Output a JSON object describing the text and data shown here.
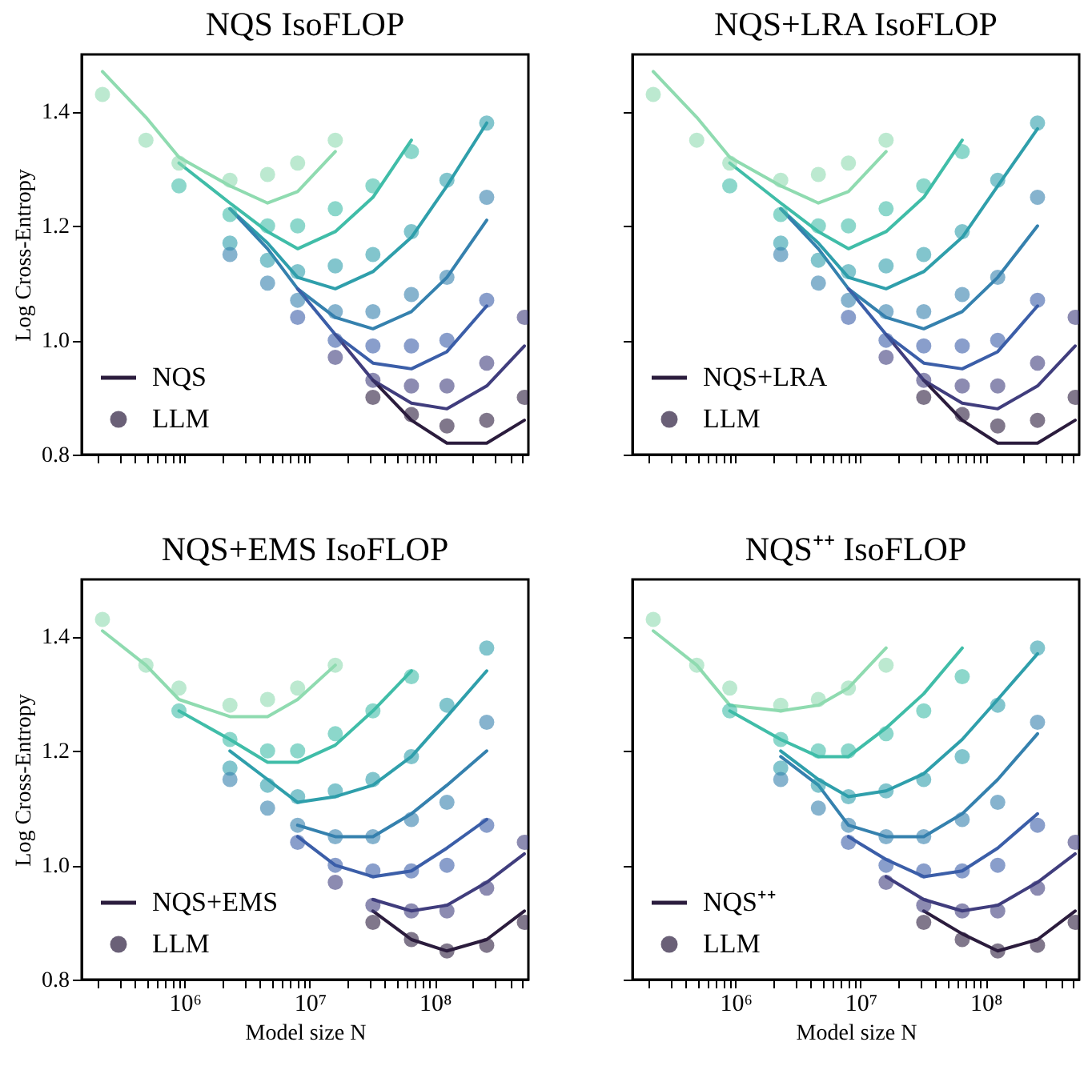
{
  "chart_data": [
    {
      "type": "line",
      "title": "NQS IsoFLOP",
      "ylabel": "Log Cross-Entropy",
      "xlim": [
        150000,
        560000000
      ],
      "ylim": [
        0.8,
        1.5
      ],
      "log": "x",
      "grid": false,
      "legend": "bottom left",
      "tick_labels": "y",
      "xticks": [
        {
          "value": 200000,
          "label": null
        },
        {
          "value": 300000,
          "label": null
        },
        {
          "value": 400000,
          "label": null
        },
        {
          "value": 500000,
          "label": null
        },
        {
          "value": 600000,
          "label": null
        },
        {
          "value": 700000,
          "label": null
        },
        {
          "value": 800000,
          "label": null
        },
        {
          "value": 900000,
          "label": null
        },
        {
          "value": 1000000,
          "label": null
        },
        {
          "value": 2000000,
          "label": null
        },
        {
          "value": 3000000,
          "label": null
        },
        {
          "value": 4000000,
          "label": null
        },
        {
          "value": 5000000,
          "label": null
        },
        {
          "value": 6000000,
          "label": null
        },
        {
          "value": 7000000,
          "label": null
        },
        {
          "value": 8000000,
          "label": null
        },
        {
          "value": 9000000,
          "label": null
        },
        {
          "value": 10000000,
          "label": null
        },
        {
          "value": 20000000,
          "label": null
        },
        {
          "value": 30000000,
          "label": null
        },
        {
          "value": 40000000,
          "label": null
        },
        {
          "value": 50000000,
          "label": null
        },
        {
          "value": 60000000,
          "label": null
        },
        {
          "value": 70000000,
          "label": null
        },
        {
          "value": 80000000,
          "label": null
        },
        {
          "value": 90000000,
          "label": null
        },
        {
          "value": 100000000,
          "label": null
        },
        {
          "value": 200000000,
          "label": null
        },
        {
          "value": 300000000,
          "label": null
        },
        {
          "value": 400000000,
          "label": null
        },
        {
          "value": 500000000,
          "label": null
        }
      ],
      "yticks": [
        0.8,
        {
          "value": 1.0,
          "label": "1.0"
        },
        1.2,
        1.4
      ],
      "series": [
        {
          "type": "line",
          "color": "#8fdbb0",
          "x": [
            220000,
            490000,
            900000,
            2300000,
            4600000,
            8000000,
            16000000
          ],
          "values": [
            1.47,
            1.39,
            1.32,
            1.27,
            1.24,
            1.26,
            1.33
          ]
        },
        {
          "type": "line",
          "color": "#40bda8",
          "x": [
            900000,
            2300000,
            4600000,
            8000000,
            16000000,
            32000000,
            65000000
          ],
          "values": [
            1.31,
            1.24,
            1.19,
            1.16,
            1.19,
            1.25,
            1.35
          ]
        },
        {
          "type": "line",
          "color": "#2f9fab",
          "x": [
            2300000,
            4600000,
            8000000,
            16000000,
            32000000,
            65000000,
            125000000,
            260000000
          ],
          "values": [
            1.23,
            1.17,
            1.11,
            1.09,
            1.12,
            1.18,
            1.27,
            1.38
          ]
        },
        {
          "type": "line",
          "color": "#3581ae",
          "x": [
            2300000,
            4600000,
            8000000,
            16000000,
            32000000,
            65000000,
            125000000,
            260000000
          ],
          "values": [
            1.23,
            1.16,
            1.09,
            1.04,
            1.02,
            1.05,
            1.11,
            1.21
          ]
        },
        {
          "type": "line",
          "color": "#3b5ea8",
          "x": [
            8000000,
            16000000,
            32000000,
            65000000,
            125000000,
            260000000
          ],
          "values": [
            1.09,
            1.01,
            0.96,
            0.95,
            0.98,
            1.06
          ]
        },
        {
          "type": "line",
          "color": "#403d7d",
          "x": [
            16000000,
            32000000,
            65000000,
            125000000,
            260000000,
            520000000
          ],
          "values": [
            1.01,
            0.93,
            0.89,
            0.88,
            0.92,
            0.99
          ]
        },
        {
          "type": "line",
          "color": "#2b1c3d",
          "name": "NQS",
          "x": [
            32000000,
            65000000,
            125000000,
            260000000,
            520000000
          ],
          "values": [
            0.93,
            0.86,
            0.82,
            0.82,
            0.86
          ]
        },
        {
          "type": "scatter",
          "color": "#8fdbb0",
          "x": [
            220000,
            490000,
            900000,
            2300000,
            4600000,
            8000000,
            16000000
          ],
          "values": [
            1.43,
            1.35,
            1.31,
            1.28,
            1.29,
            1.31,
            1.35
          ]
        },
        {
          "type": "scatter",
          "color": "#40bda8",
          "x": [
            900000,
            2300000,
            4600000,
            8000000,
            16000000,
            32000000,
            65000000
          ],
          "values": [
            1.27,
            1.22,
            1.2,
            1.2,
            1.23,
            1.27,
            1.33
          ]
        },
        {
          "type": "scatter",
          "color": "#2f9fab",
          "x": [
            2300000,
            4600000,
            8000000,
            16000000,
            32000000,
            65000000,
            125000000,
            260000000
          ],
          "values": [
            1.17,
            1.14,
            1.12,
            1.13,
            1.15,
            1.19,
            1.28,
            1.38
          ]
        },
        {
          "type": "scatter",
          "color": "#3581ae",
          "x": [
            2300000,
            4600000,
            8000000,
            16000000,
            32000000,
            65000000,
            125000000,
            260000000
          ],
          "values": [
            1.15,
            1.1,
            1.07,
            1.05,
            1.05,
            1.08,
            1.11,
            1.25
          ]
        },
        {
          "type": "scatter",
          "color": "#3b5ea8",
          "x": [
            8000000,
            16000000,
            32000000,
            65000000,
            125000000,
            260000000
          ],
          "values": [
            1.04,
            1.0,
            0.99,
            0.99,
            1.0,
            1.07
          ]
        },
        {
          "type": "scatter",
          "color": "#403d7d",
          "x": [
            16000000,
            32000000,
            65000000,
            125000000,
            260000000,
            520000000
          ],
          "values": [
            0.97,
            0.93,
            0.92,
            0.92,
            0.96,
            1.04
          ]
        },
        {
          "type": "scatter",
          "color": "#2b1c3d",
          "name": "LLM",
          "x": [
            32000000,
            65000000,
            125000000,
            260000000,
            520000000
          ],
          "values": [
            0.9,
            0.87,
            0.85,
            0.86,
            0.9
          ]
        }
      ]
    },
    {
      "type": "line",
      "title": "NQS+LRA IsoFLOP",
      "xlim": [
        150000,
        560000000
      ],
      "ylim": [
        0.8,
        1.5
      ],
      "log": "x",
      "grid": false,
      "legend": "bottom left",
      "tick_labels": false,
      "xticks": [
        {
          "value": 200000,
          "label": null
        },
        {
          "value": 300000,
          "label": null
        },
        {
          "value": 400000,
          "label": null
        },
        {
          "value": 500000,
          "label": null
        },
        {
          "value": 600000,
          "label": null
        },
        {
          "value": 700000,
          "label": null
        },
        {
          "value": 800000,
          "label": null
        },
        {
          "value": 900000,
          "label": null
        },
        {
          "value": 1000000,
          "label": null
        },
        {
          "value": 2000000,
          "label": null
        },
        {
          "value": 3000000,
          "label": null
        },
        {
          "value": 4000000,
          "label": null
        },
        {
          "value": 5000000,
          "label": null
        },
        {
          "value": 6000000,
          "label": null
        },
        {
          "value": 7000000,
          "label": null
        },
        {
          "value": 8000000,
          "label": null
        },
        {
          "value": 9000000,
          "label": null
        },
        {
          "value": 10000000,
          "label": null
        },
        {
          "value": 20000000,
          "label": null
        },
        {
          "value": 30000000,
          "label": null
        },
        {
          "value": 40000000,
          "label": null
        },
        {
          "value": 50000000,
          "label": null
        },
        {
          "value": 60000000,
          "label": null
        },
        {
          "value": 70000000,
          "label": null
        },
        {
          "value": 80000000,
          "label": null
        },
        {
          "value": 90000000,
          "label": null
        },
        {
          "value": 100000000,
          "label": null
        },
        {
          "value": 200000000,
          "label": null
        },
        {
          "value": 300000000,
          "label": null
        },
        {
          "value": 400000000,
          "label": null
        },
        {
          "value": 500000000,
          "label": null
        }
      ],
      "yticks": [
        {
          "value": 0.8,
          "label": null
        },
        {
          "value": 1.0,
          "label": null
        },
        {
          "value": 1.2,
          "label": null
        },
        {
          "value": 1.4,
          "label": null
        }
      ],
      "series": [
        {
          "type": "line",
          "color": "#8fdbb0",
          "x": [
            220000,
            490000,
            900000,
            2300000,
            4600000,
            8000000,
            16000000
          ],
          "values": [
            1.47,
            1.39,
            1.32,
            1.27,
            1.24,
            1.26,
            1.33
          ]
        },
        {
          "type": "line",
          "color": "#40bda8",
          "x": [
            900000,
            2300000,
            4600000,
            8000000,
            16000000,
            32000000,
            65000000
          ],
          "values": [
            1.31,
            1.24,
            1.19,
            1.16,
            1.19,
            1.25,
            1.35
          ]
        },
        {
          "type": "line",
          "color": "#2f9fab",
          "x": [
            2300000,
            4600000,
            8000000,
            16000000,
            32000000,
            65000000,
            125000000,
            260000000
          ],
          "values": [
            1.23,
            1.17,
            1.11,
            1.09,
            1.12,
            1.18,
            1.27,
            1.37
          ]
        },
        {
          "type": "line",
          "color": "#3581ae",
          "x": [
            2300000,
            4600000,
            8000000,
            16000000,
            32000000,
            65000000,
            125000000,
            260000000
          ],
          "values": [
            1.23,
            1.16,
            1.09,
            1.04,
            1.02,
            1.05,
            1.11,
            1.2
          ]
        },
        {
          "type": "line",
          "color": "#3b5ea8",
          "x": [
            8000000,
            16000000,
            32000000,
            65000000,
            125000000,
            260000000
          ],
          "values": [
            1.09,
            1.01,
            0.96,
            0.95,
            0.98,
            1.06
          ]
        },
        {
          "type": "line",
          "color": "#403d7d",
          "x": [
            16000000,
            32000000,
            65000000,
            125000000,
            260000000,
            520000000
          ],
          "values": [
            1.01,
            0.93,
            0.89,
            0.88,
            0.92,
            0.99
          ]
        },
        {
          "type": "line",
          "color": "#2b1c3d",
          "name": "NQS+LRA",
          "x": [
            32000000,
            65000000,
            125000000,
            260000000,
            520000000
          ],
          "values": [
            0.93,
            0.86,
            0.82,
            0.82,
            0.86
          ]
        },
        {
          "type": "scatter",
          "color": "#8fdbb0",
          "x": [
            220000,
            490000,
            900000,
            2300000,
            4600000,
            8000000,
            16000000
          ],
          "values": [
            1.43,
            1.35,
            1.31,
            1.28,
            1.29,
            1.31,
            1.35
          ]
        },
        {
          "type": "scatter",
          "color": "#40bda8",
          "x": [
            900000,
            2300000,
            4600000,
            8000000,
            16000000,
            32000000,
            65000000
          ],
          "values": [
            1.27,
            1.22,
            1.2,
            1.2,
            1.23,
            1.27,
            1.33
          ]
        },
        {
          "type": "scatter",
          "color": "#2f9fab",
          "x": [
            2300000,
            4600000,
            8000000,
            16000000,
            32000000,
            65000000,
            125000000,
            260000000
          ],
          "values": [
            1.17,
            1.14,
            1.12,
            1.13,
            1.15,
            1.19,
            1.28,
            1.38
          ]
        },
        {
          "type": "scatter",
          "color": "#3581ae",
          "x": [
            2300000,
            4600000,
            8000000,
            16000000,
            32000000,
            65000000,
            125000000,
            260000000
          ],
          "values": [
            1.15,
            1.1,
            1.07,
            1.05,
            1.05,
            1.08,
            1.11,
            1.25
          ]
        },
        {
          "type": "scatter",
          "color": "#3b5ea8",
          "x": [
            8000000,
            16000000,
            32000000,
            65000000,
            125000000,
            260000000
          ],
          "values": [
            1.04,
            1.0,
            0.99,
            0.99,
            1.0,
            1.07
          ]
        },
        {
          "type": "scatter",
          "color": "#403d7d",
          "x": [
            16000000,
            32000000,
            65000000,
            125000000,
            260000000,
            520000000
          ],
          "values": [
            0.97,
            0.93,
            0.92,
            0.92,
            0.96,
            1.04
          ]
        },
        {
          "type": "scatter",
          "color": "#2b1c3d",
          "name": "LLM",
          "x": [
            32000000,
            65000000,
            125000000,
            260000000,
            520000000
          ],
          "values": [
            0.9,
            0.87,
            0.85,
            0.86,
            0.9
          ]
        }
      ]
    },
    {
      "type": "line",
      "title": "NQS+EMS IsoFLOP",
      "xlabel": "Model size N",
      "ylabel": "Log Cross-Entropy",
      "xlim": [
        150000,
        560000000
      ],
      "ylim": [
        0.8,
        1.5
      ],
      "log": "x",
      "grid": false,
      "legend": "bottom left",
      "xticks": [
        {
          "value": 200000,
          "label": null
        },
        {
          "value": 300000,
          "label": null
        },
        {
          "value": 400000,
          "label": null
        },
        {
          "value": 500000,
          "label": null
        },
        {
          "value": 600000,
          "label": null
        },
        {
          "value": 700000,
          "label": null
        },
        {
          "value": 800000,
          "label": null
        },
        {
          "value": 900000,
          "label": null
        },
        {
          "value": 1000000,
          "label": "10⁶"
        },
        {
          "value": 2000000,
          "label": null
        },
        {
          "value": 3000000,
          "label": null
        },
        {
          "value": 4000000,
          "label": null
        },
        {
          "value": 5000000,
          "label": null
        },
        {
          "value": 6000000,
          "label": null
        },
        {
          "value": 7000000,
          "label": null
        },
        {
          "value": 8000000,
          "label": null
        },
        {
          "value": 9000000,
          "label": null
        },
        {
          "value": 10000000,
          "label": "10⁷"
        },
        {
          "value": 20000000,
          "label": null
        },
        {
          "value": 30000000,
          "label": null
        },
        {
          "value": 40000000,
          "label": null
        },
        {
          "value": 50000000,
          "label": null
        },
        {
          "value": 60000000,
          "label": null
        },
        {
          "value": 70000000,
          "label": null
        },
        {
          "value": 80000000,
          "label": null
        },
        {
          "value": 90000000,
          "label": null
        },
        {
          "value": 100000000,
          "label": "10⁸"
        },
        {
          "value": 200000000,
          "label": null
        },
        {
          "value": 300000000,
          "label": null
        },
        {
          "value": 400000000,
          "label": null
        },
        {
          "value": 500000000,
          "label": null
        }
      ],
      "yticks": [
        0.8,
        {
          "value": 1.0,
          "label": "1.0"
        },
        1.2,
        1.4
      ],
      "series": [
        {
          "type": "line",
          "color": "#8fdbb0",
          "x": [
            220000,
            490000,
            900000,
            2300000,
            4600000,
            8000000,
            16000000
          ],
          "values": [
            1.41,
            1.35,
            1.29,
            1.26,
            1.26,
            1.29,
            1.35
          ]
        },
        {
          "type": "line",
          "color": "#40bda8",
          "x": [
            900000,
            2300000,
            4600000,
            8000000,
            16000000,
            32000000,
            65000000
          ],
          "values": [
            1.27,
            1.22,
            1.18,
            1.18,
            1.21,
            1.27,
            1.34
          ]
        },
        {
          "type": "line",
          "color": "#2f9fab",
          "x": [
            2300000,
            4600000,
            8000000,
            16000000,
            32000000,
            65000000,
            125000000,
            260000000
          ],
          "values": [
            1.2,
            1.15,
            1.11,
            1.12,
            1.14,
            1.19,
            1.26,
            1.34
          ]
        },
        {
          "type": "line",
          "color": "#3581ae",
          "x": [
            8000000,
            16000000,
            32000000,
            65000000,
            125000000,
            260000000
          ],
          "values": [
            1.07,
            1.05,
            1.05,
            1.09,
            1.14,
            1.2
          ]
        },
        {
          "type": "line",
          "color": "#3b5ea8",
          "x": [
            8000000,
            16000000,
            32000000,
            65000000,
            125000000,
            260000000
          ],
          "values": [
            1.05,
            1.0,
            0.98,
            0.99,
            1.03,
            1.08
          ]
        },
        {
          "type": "line",
          "color": "#403d7d",
          "x": [
            32000000,
            65000000,
            125000000,
            260000000,
            520000000
          ],
          "values": [
            0.94,
            0.92,
            0.93,
            0.97,
            1.02
          ]
        },
        {
          "type": "line",
          "color": "#2b1c3d",
          "name": "NQS+EMS",
          "x": [
            32000000,
            65000000,
            125000000,
            260000000,
            520000000
          ],
          "values": [
            0.92,
            0.87,
            0.85,
            0.87,
            0.92
          ]
        },
        {
          "type": "scatter",
          "color": "#8fdbb0",
          "x": [
            220000,
            490000,
            900000,
            2300000,
            4600000,
            8000000,
            16000000
          ],
          "values": [
            1.43,
            1.35,
            1.31,
            1.28,
            1.29,
            1.31,
            1.35
          ]
        },
        {
          "type": "scatter",
          "color": "#40bda8",
          "x": [
            900000,
            2300000,
            4600000,
            8000000,
            16000000,
            32000000,
            65000000
          ],
          "values": [
            1.27,
            1.22,
            1.2,
            1.2,
            1.23,
            1.27,
            1.33
          ]
        },
        {
          "type": "scatter",
          "color": "#2f9fab",
          "x": [
            2300000,
            4600000,
            8000000,
            16000000,
            32000000,
            65000000,
            125000000,
            260000000
          ],
          "values": [
            1.17,
            1.14,
            1.12,
            1.13,
            1.15,
            1.19,
            1.28,
            1.38
          ]
        },
        {
          "type": "scatter",
          "color": "#3581ae",
          "x": [
            2300000,
            4600000,
            8000000,
            16000000,
            32000000,
            65000000,
            125000000,
            260000000
          ],
          "values": [
            1.15,
            1.1,
            1.07,
            1.05,
            1.05,
            1.08,
            1.11,
            1.25
          ]
        },
        {
          "type": "scatter",
          "color": "#3b5ea8",
          "x": [
            8000000,
            16000000,
            32000000,
            65000000,
            125000000,
            260000000
          ],
          "values": [
            1.04,
            1.0,
            0.99,
            0.99,
            1.0,
            1.07
          ]
        },
        {
          "type": "scatter",
          "color": "#403d7d",
          "x": [
            16000000,
            32000000,
            65000000,
            125000000,
            260000000,
            520000000
          ],
          "values": [
            0.97,
            0.93,
            0.92,
            0.92,
            0.96,
            1.04
          ]
        },
        {
          "type": "scatter",
          "color": "#2b1c3d",
          "name": "LLM",
          "x": [
            32000000,
            65000000,
            125000000,
            260000000,
            520000000
          ],
          "values": [
            0.9,
            0.87,
            0.85,
            0.86,
            0.9
          ]
        }
      ]
    },
    {
      "type": "line",
      "title": "NQS⁺⁺ IsoFLOP",
      "xlabel": "Model size N",
      "xlim": [
        150000,
        560000000
      ],
      "ylim": [
        0.8,
        1.5
      ],
      "log": "x",
      "grid": false,
      "legend": "bottom left",
      "tick_labels": "x",
      "xticks": [
        {
          "value": 200000,
          "label": null
        },
        {
          "value": 300000,
          "label": null
        },
        {
          "value": 400000,
          "label": null
        },
        {
          "value": 500000,
          "label": null
        },
        {
          "value": 600000,
          "label": null
        },
        {
          "value": 700000,
          "label": null
        },
        {
          "value": 800000,
          "label": null
        },
        {
          "value": 900000,
          "label": null
        },
        {
          "value": 1000000,
          "label": "10⁶"
        },
        {
          "value": 2000000,
          "label": null
        },
        {
          "value": 3000000,
          "label": null
        },
        {
          "value": 4000000,
          "label": null
        },
        {
          "value": 5000000,
          "label": null
        },
        {
          "value": 6000000,
          "label": null
        },
        {
          "value": 7000000,
          "label": null
        },
        {
          "value": 8000000,
          "label": null
        },
        {
          "value": 9000000,
          "label": null
        },
        {
          "value": 10000000,
          "label": "10⁷"
        },
        {
          "value": 20000000,
          "label": null
        },
        {
          "value": 30000000,
          "label": null
        },
        {
          "value": 40000000,
          "label": null
        },
        {
          "value": 50000000,
          "label": null
        },
        {
          "value": 60000000,
          "label": null
        },
        {
          "value": 70000000,
          "label": null
        },
        {
          "value": 80000000,
          "label": null
        },
        {
          "value": 90000000,
          "label": null
        },
        {
          "value": 100000000,
          "label": "10⁸"
        },
        {
          "value": 200000000,
          "label": null
        },
        {
          "value": 300000000,
          "label": null
        },
        {
          "value": 400000000,
          "label": null
        },
        {
          "value": 500000000,
          "label": null
        }
      ],
      "yticks": [
        {
          "value": 0.8,
          "label": null
        },
        {
          "value": 1.0,
          "label": null
        },
        {
          "value": 1.2,
          "label": null
        },
        {
          "value": 1.4,
          "label": null
        }
      ],
      "series": [
        {
          "type": "line",
          "color": "#8fdbb0",
          "x": [
            220000,
            490000,
            900000,
            2300000,
            4600000,
            8000000,
            16000000
          ],
          "values": [
            1.41,
            1.35,
            1.28,
            1.27,
            1.28,
            1.31,
            1.38
          ]
        },
        {
          "type": "line",
          "color": "#40bda8",
          "x": [
            900000,
            2300000,
            4600000,
            8000000,
            16000000,
            32000000,
            65000000
          ],
          "values": [
            1.27,
            1.22,
            1.19,
            1.19,
            1.24,
            1.3,
            1.38
          ]
        },
        {
          "type": "line",
          "color": "#2f9fab",
          "x": [
            2300000,
            4600000,
            8000000,
            16000000,
            32000000,
            65000000,
            125000000,
            260000000
          ],
          "values": [
            1.2,
            1.15,
            1.12,
            1.13,
            1.16,
            1.22,
            1.29,
            1.37
          ]
        },
        {
          "type": "line",
          "color": "#3581ae",
          "x": [
            2300000,
            4600000,
            8000000,
            16000000,
            32000000,
            65000000,
            125000000,
            260000000
          ],
          "values": [
            1.19,
            1.14,
            1.07,
            1.05,
            1.05,
            1.09,
            1.15,
            1.23
          ]
        },
        {
          "type": "line",
          "color": "#3b5ea8",
          "x": [
            8000000,
            16000000,
            32000000,
            65000000,
            125000000,
            260000000
          ],
          "values": [
            1.05,
            1.01,
            0.98,
            0.99,
            1.03,
            1.09
          ]
        },
        {
          "type": "line",
          "color": "#403d7d",
          "x": [
            16000000,
            32000000,
            65000000,
            125000000,
            260000000,
            520000000
          ],
          "values": [
            0.98,
            0.94,
            0.92,
            0.93,
            0.97,
            1.02
          ]
        },
        {
          "type": "line",
          "color": "#2b1c3d",
          "name": "NQS⁺⁺",
          "x": [
            32000000,
            65000000,
            125000000,
            260000000,
            520000000
          ],
          "values": [
            0.92,
            0.88,
            0.85,
            0.87,
            0.92
          ]
        },
        {
          "type": "scatter",
          "color": "#8fdbb0",
          "x": [
            220000,
            490000,
            900000,
            2300000,
            4600000,
            8000000,
            16000000
          ],
          "values": [
            1.43,
            1.35,
            1.31,
            1.28,
            1.29,
            1.31,
            1.35
          ]
        },
        {
          "type": "scatter",
          "color": "#40bda8",
          "x": [
            900000,
            2300000,
            4600000,
            8000000,
            16000000,
            32000000,
            65000000
          ],
          "values": [
            1.27,
            1.22,
            1.2,
            1.2,
            1.23,
            1.27,
            1.33
          ]
        },
        {
          "type": "scatter",
          "color": "#2f9fab",
          "x": [
            2300000,
            4600000,
            8000000,
            16000000,
            32000000,
            65000000,
            125000000,
            260000000
          ],
          "values": [
            1.17,
            1.14,
            1.12,
            1.13,
            1.15,
            1.19,
            1.28,
            1.38
          ]
        },
        {
          "type": "scatter",
          "color": "#3581ae",
          "x": [
            2300000,
            4600000,
            8000000,
            16000000,
            32000000,
            65000000,
            125000000,
            260000000
          ],
          "values": [
            1.15,
            1.1,
            1.07,
            1.05,
            1.05,
            1.08,
            1.11,
            1.25
          ]
        },
        {
          "type": "scatter",
          "color": "#3b5ea8",
          "x": [
            8000000,
            16000000,
            32000000,
            65000000,
            125000000,
            260000000
          ],
          "values": [
            1.04,
            1.0,
            0.99,
            0.99,
            1.0,
            1.07
          ]
        },
        {
          "type": "scatter",
          "color": "#403d7d",
          "x": [
            16000000,
            32000000,
            65000000,
            125000000,
            260000000,
            520000000
          ],
          "values": [
            0.97,
            0.93,
            0.92,
            0.92,
            0.96,
            1.04
          ]
        },
        {
          "type": "scatter",
          "color": "#2b1c3d",
          "name": "LLM",
          "x": [
            32000000,
            65000000,
            125000000,
            260000000,
            520000000
          ],
          "values": [
            0.9,
            0.87,
            0.85,
            0.86,
            0.9
          ]
        }
      ]
    }
  ]
}
